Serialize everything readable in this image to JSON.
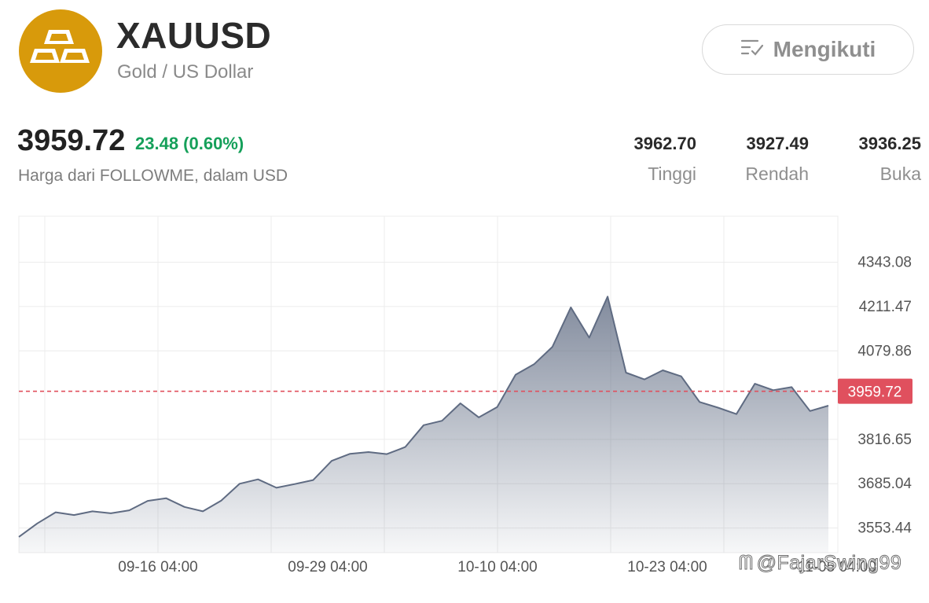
{
  "header": {
    "symbol": "XAUUSD",
    "subtitle": "Gold / US Dollar",
    "logo_icon": "gold-bars-icon",
    "logo_color": "#d89a0b",
    "follow_button": {
      "label": "Mengikuti",
      "icon": "list-check-icon"
    }
  },
  "quote": {
    "price": "3959.72",
    "change": "23.48 (0.60%)",
    "change_color": "#15a05a",
    "note": "Harga dari FOLLOWME, dalam USD",
    "stats": [
      {
        "value": "3962.70",
        "label": "Tinggi"
      },
      {
        "value": "3927.49",
        "label": "Rendah"
      },
      {
        "value": "3936.25",
        "label": "Buka"
      }
    ]
  },
  "chart_data": {
    "type": "area",
    "y_ticks": [
      "4343.08",
      "4211.47",
      "4079.86",
      "3816.65",
      "3685.04",
      "3553.44"
    ],
    "y_tick_values": [
      4343.08,
      4211.47,
      4079.86,
      3816.65,
      3685.04,
      3553.44
    ],
    "x_ticks": [
      "09-16 04:00",
      "09-29 04:00",
      "10-10 04:00",
      "10-23 04:00",
      "11-05 04:00"
    ],
    "ylim": [
      3480,
      4480
    ],
    "current_price": 3959.72,
    "current_price_label": "3959.72",
    "line_color": "#5f6b82",
    "current_line_color": "#e0505e",
    "values": [
      3527,
      3567,
      3600,
      3592,
      3603,
      3597,
      3606,
      3634,
      3642,
      3616,
      3603,
      3635,
      3685,
      3698,
      3673,
      3684,
      3696,
      3753,
      3774,
      3779,
      3773,
      3794,
      3859,
      3872,
      3924,
      3882,
      3913,
      4009,
      4040,
      4092,
      4209,
      4119,
      4241,
      4015,
      3995,
      4022,
      4004,
      3928,
      3911,
      3892,
      3982,
      3963,
      3972,
      3901,
      3917
    ]
  },
  "watermark": {
    "text": "@FajarSwing99",
    "icon": "followme-logo-icon"
  }
}
